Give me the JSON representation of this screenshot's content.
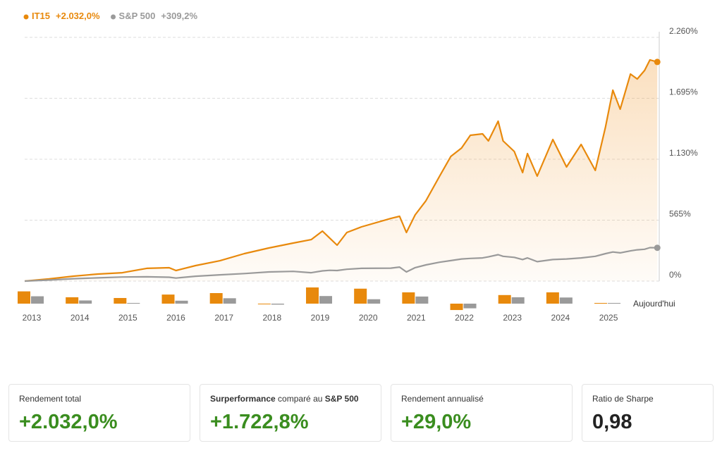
{
  "chart_data": [
    {
      "type": "line",
      "x": [
        2013.0,
        2013.5,
        2014.0,
        2014.5,
        2015.0,
        2015.5,
        2015.96,
        2016.1,
        2016.5,
        2017.0,
        2017.5,
        2018.0,
        2018.5,
        2018.87,
        2019.1,
        2019.25,
        2019.4,
        2019.6,
        2019.9,
        2020.5,
        2020.68,
        2020.82,
        2021.0,
        2021.22,
        2021.5,
        2021.73,
        2021.95,
        2022.13,
        2022.38,
        2022.5,
        2022.7,
        2022.8,
        2023.03,
        2023.2,
        2023.3,
        2023.5,
        2023.82,
        2024.1,
        2024.4,
        2024.69,
        2024.9,
        2025.05,
        2025.2,
        2025.41,
        2025.55,
        2025.7,
        2025.81,
        2025.96
      ],
      "xlim": [
        2013,
        2026
      ],
      "series": [
        {
          "name": "IT15",
          "color": "#e8890c",
          "legend_value": "+2.032,0%",
          "area": true,
          "values": [
            0,
            20,
            46,
            65,
            78,
            118,
            124,
            98,
            144,
            189,
            255,
            307,
            353,
            385,
            464,
            398,
            333,
            451,
            503,
            581,
            601,
            451,
            614,
            745,
            973,
            1156,
            1234,
            1352,
            1365,
            1300,
            1483,
            1300,
            1202,
            1006,
            1182,
            973,
            1313,
            1058,
            1267,
            1026,
            1430,
            1770,
            1594,
            1920,
            1874,
            1953,
            2051,
            2032
          ]
        },
        {
          "name": "S&P 500",
          "color": "#9a9a9a",
          "legend_value": "+309,2%",
          "area": false,
          "values": [
            0,
            10,
            22,
            30,
            38,
            40,
            36,
            28,
            45,
            58,
            70,
            85,
            90,
            78,
            95,
            100,
            98,
            110,
            118,
            120,
            130,
            85,
            125,
            150,
            175,
            190,
            205,
            210,
            215,
            225,
            245,
            230,
            220,
            200,
            215,
            180,
            200,
            205,
            215,
            230,
            255,
            270,
            262,
            280,
            290,
            295,
            310,
            309
          ]
        }
      ],
      "ylim": [
        0,
        2260
      ],
      "yticks": [
        {
          "value": 0,
          "label": "0%"
        },
        {
          "value": 565,
          "label": "565%"
        },
        {
          "value": 1130,
          "label": "1.130%"
        },
        {
          "value": 1695,
          "label": "1.695%"
        },
        {
          "value": 2260,
          "label": "2.260%"
        }
      ],
      "grid": true
    },
    {
      "type": "bar",
      "categories": [
        "2013",
        "2014",
        "2015",
        "2016",
        "2017",
        "2018",
        "2019",
        "2020",
        "2021",
        "2022",
        "2023",
        "2024",
        "2025"
      ],
      "series": [
        {
          "name": "IT15",
          "color": "#e8890c",
          "values": [
            50,
            26,
            23,
            37,
            43,
            -2,
            66,
            61,
            46,
            -26,
            35,
            46,
            2
          ]
        },
        {
          "name": "S&P 500",
          "color": "#9a9a9a",
          "values": [
            30,
            13,
            1,
            12,
            22,
            -4,
            31,
            18,
            29,
            -19,
            26,
            25,
            1
          ]
        }
      ],
      "annotation": "Aujourd'hui"
    }
  ],
  "cards": [
    {
      "label_parts": [
        "Rendement total"
      ],
      "value": "+2.032,0%",
      "positive": true
    },
    {
      "label_parts": [
        "Surperformance",
        "comparé au",
        "S&P 500"
      ],
      "value": "+1.722,8%",
      "positive": true
    },
    {
      "label_parts": [
        "Rendement annualisé"
      ],
      "value": "+29,0%",
      "positive": true
    },
    {
      "label_parts": [
        "Ratio de Sharpe"
      ],
      "value": "0,98",
      "positive": false
    }
  ]
}
